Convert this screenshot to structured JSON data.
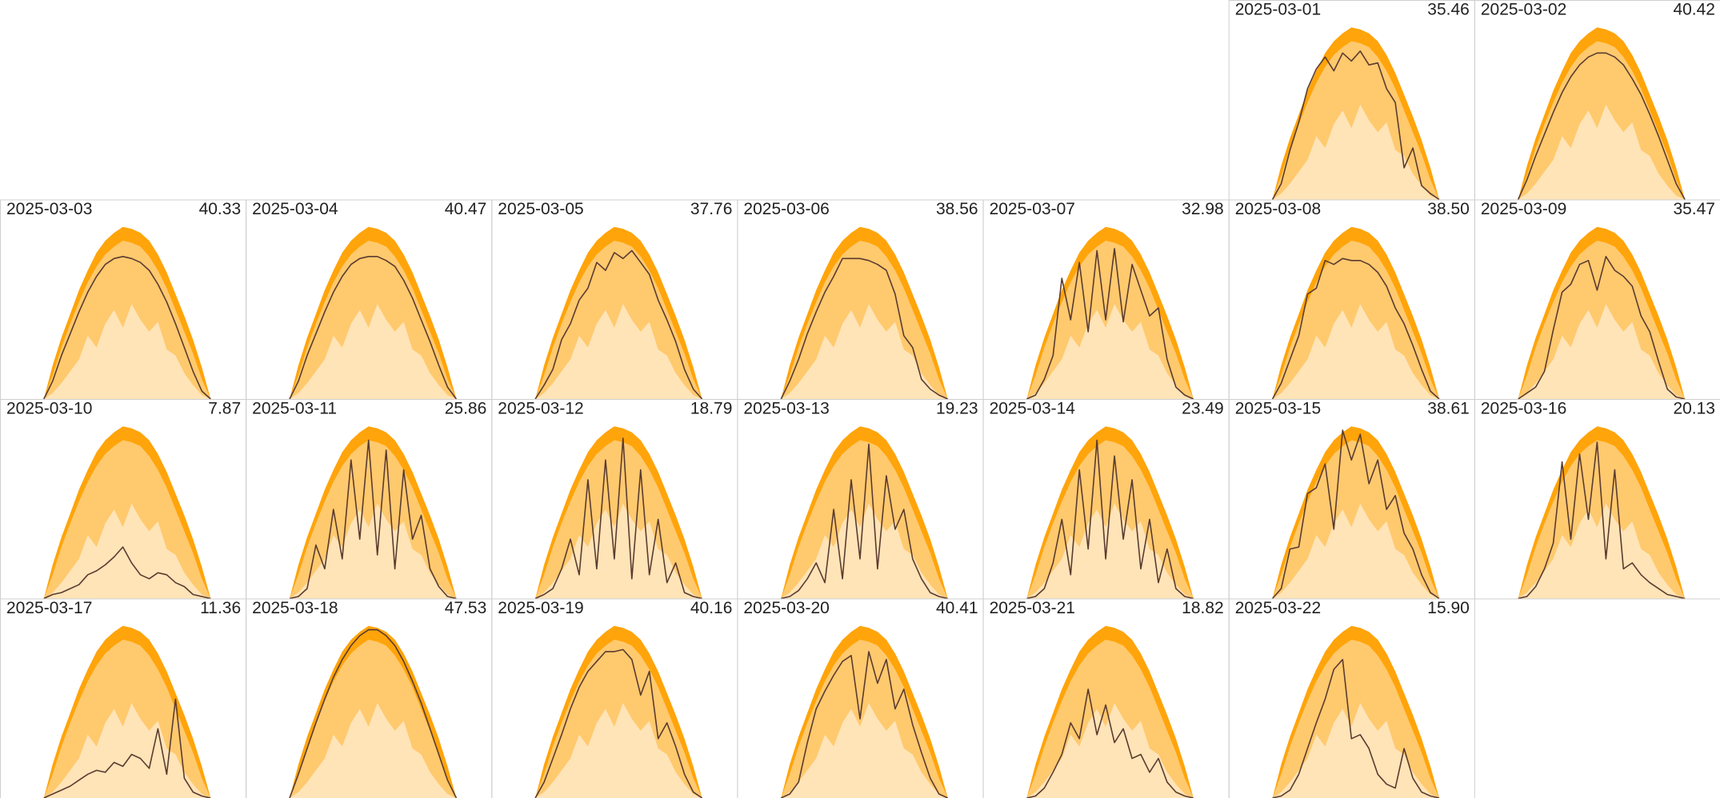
{
  "chart_data": {
    "type": "small-multiples",
    "x": [
      7.5,
      8,
      8.5,
      9,
      9.5,
      10,
      10.5,
      11,
      11.5,
      12,
      12.5,
      13,
      13.5,
      14,
      14.5,
      15,
      15.5,
      16,
      16.5,
      17
    ],
    "xlim": [
      5,
      19
    ],
    "ylim": [
      0,
      10
    ],
    "line_color": "#5b3b2f",
    "bands": [
      {
        "color": "#ffa40a",
        "values": [
          0,
          1.7,
          3.1,
          4.3,
          5.5,
          6.5,
          7.4,
          8.0,
          8.4,
          8.7,
          8.6,
          8.4,
          8.0,
          7.3,
          6.4,
          5.3,
          4.2,
          3.0,
          1.6,
          0
        ]
      },
      {
        "color": "#ffc96e",
        "values": [
          0,
          1.2,
          2.6,
          3.8,
          4.9,
          5.9,
          6.7,
          7.3,
          7.7,
          8.0,
          7.9,
          7.7,
          7.2,
          6.5,
          5.6,
          4.5,
          3.4,
          2.3,
          1.0,
          0
        ]
      },
      {
        "color": "#ffe4b8",
        "values": [
          0,
          0.3,
          0.8,
          1.4,
          2.0,
          3.2,
          2.6,
          3.8,
          4.5,
          3.6,
          4.8,
          4.0,
          3.4,
          3.9,
          2.5,
          2.2,
          1.3,
          0.7,
          0.2,
          0
        ]
      }
    ],
    "panels": [
      {
        "date": "2025-03-01",
        "total": {
          "value": 35.46,
          "label": "35.46"
        },
        "values": [
          0,
          0.8,
          2.5,
          3.9,
          5.6,
          6.6,
          7.2,
          6.5,
          7.4,
          7.0,
          7.5,
          6.8,
          6.9,
          5.6,
          4.9,
          1.6,
          2.6,
          0.7,
          0.3,
          0
        ]
      },
      {
        "date": "2025-03-02",
        "total": {
          "value": 40.42,
          "label": "40.42"
        },
        "values": [
          0,
          1.0,
          2.2,
          3.3,
          4.4,
          5.4,
          6.2,
          6.8,
          7.2,
          7.4,
          7.4,
          7.2,
          6.8,
          6.1,
          5.3,
          4.3,
          3.2,
          2.0,
          0.8,
          0
        ]
      },
      {
        "date": "2025-03-03",
        "total": {
          "value": 40.33,
          "label": "40.33"
        },
        "values": [
          0,
          0.9,
          2.2,
          3.3,
          4.4,
          5.4,
          6.2,
          6.8,
          7.1,
          7.2,
          7.1,
          6.9,
          6.5,
          5.8,
          4.9,
          3.8,
          2.6,
          1.4,
          0.4,
          0
        ]
      },
      {
        "date": "2025-03-04",
        "total": {
          "value": 40.47,
          "label": "40.47"
        },
        "values": [
          0,
          0.9,
          2.2,
          3.3,
          4.4,
          5.4,
          6.2,
          6.8,
          7.1,
          7.2,
          7.2,
          7.0,
          6.7,
          6.0,
          5.1,
          4.0,
          2.9,
          1.7,
          0.6,
          0
        ]
      },
      {
        "date": "2025-03-05",
        "total": {
          "value": 37.76,
          "label": "37.76"
        },
        "values": [
          0,
          0.7,
          1.5,
          3.0,
          3.8,
          5.0,
          5.6,
          6.9,
          6.5,
          7.4,
          7.1,
          7.5,
          6.9,
          6.3,
          5.0,
          4.0,
          2.9,
          1.5,
          0.5,
          0
        ]
      },
      {
        "date": "2025-03-06",
        "total": {
          "value": 38.56,
          "label": "38.56"
        },
        "values": [
          0,
          0.9,
          2.0,
          3.3,
          4.4,
          5.4,
          6.2,
          7.1,
          7.1,
          7.1,
          7.0,
          6.8,
          6.5,
          5.3,
          3.2,
          2.6,
          1.0,
          0.5,
          0.2,
          0
        ]
      },
      {
        "date": "2025-03-07",
        "total": {
          "value": 32.98,
          "label": "32.98"
        },
        "values": [
          0,
          0.2,
          1.0,
          2.2,
          6.1,
          4.0,
          6.9,
          3.4,
          7.5,
          4.0,
          7.6,
          3.9,
          6.8,
          5.5,
          4.2,
          4.6,
          2.0,
          0.6,
          0.2,
          0
        ]
      },
      {
        "date": "2025-03-08",
        "total": {
          "value": 38.5,
          "label": "38.50"
        },
        "values": [
          0,
          0.8,
          2.0,
          3.2,
          5.3,
          5.6,
          7.0,
          6.8,
          7.1,
          7.0,
          7.0,
          6.8,
          6.4,
          5.7,
          4.6,
          3.8,
          2.7,
          1.5,
          0.4,
          0
        ]
      },
      {
        "date": "2025-03-09",
        "total": {
          "value": 35.47,
          "label": "35.47"
        },
        "values": [
          0,
          0.3,
          0.6,
          1.4,
          3.5,
          5.4,
          5.8,
          6.8,
          7.0,
          5.5,
          7.2,
          6.5,
          6.2,
          5.7,
          4.2,
          3.4,
          1.9,
          0.5,
          0.1,
          0
        ]
      },
      {
        "date": "2025-03-10",
        "total": {
          "value": 7.87,
          "label": "7.87"
        },
        "values": [
          0,
          0.2,
          0.3,
          0.5,
          0.7,
          1.2,
          1.4,
          1.7,
          2.1,
          2.6,
          1.8,
          1.2,
          1.0,
          1.3,
          1.2,
          0.8,
          0.6,
          0.2,
          0.1,
          0
        ]
      },
      {
        "date": "2025-03-11",
        "total": {
          "value": 25.86,
          "label": "25.86"
        },
        "values": [
          0,
          0.1,
          0.5,
          2.7,
          1.5,
          4.5,
          2.0,
          7.0,
          3.0,
          8.0,
          2.2,
          7.5,
          1.5,
          6.5,
          3.0,
          4.2,
          1.5,
          0.6,
          0.1,
          0
        ]
      },
      {
        "date": "2025-03-12",
        "total": {
          "value": 18.79,
          "label": "18.79"
        },
        "values": [
          0,
          0.2,
          0.5,
          1.5,
          3.0,
          1.2,
          6.0,
          1.5,
          7.0,
          2.0,
          8.1,
          1.0,
          6.5,
          1.2,
          4.0,
          0.8,
          1.8,
          0.3,
          0.1,
          0
        ]
      },
      {
        "date": "2025-03-13",
        "total": {
          "value": 19.23,
          "label": "19.23"
        },
        "values": [
          0,
          0.1,
          0.4,
          1.0,
          1.8,
          0.8,
          4.5,
          1.0,
          6.0,
          2.0,
          7.8,
          1.5,
          6.2,
          3.5,
          4.5,
          2.0,
          1.0,
          0.3,
          0.1,
          0
        ]
      },
      {
        "date": "2025-03-14",
        "total": {
          "value": 23.49,
          "label": "23.49"
        },
        "values": [
          0,
          0.1,
          0.5,
          1.8,
          4.0,
          1.2,
          6.5,
          2.5,
          8.0,
          2.0,
          7.2,
          3.0,
          6.0,
          1.5,
          4.0,
          0.8,
          2.5,
          0.5,
          0.1,
          0
        ]
      },
      {
        "date": "2025-03-15",
        "total": {
          "value": 38.61,
          "label": "38.61"
        },
        "values": [
          0,
          0.5,
          2.5,
          2.6,
          5.3,
          5.6,
          6.8,
          3.5,
          8.5,
          7.0,
          8.3,
          5.8,
          7.0,
          4.5,
          5.2,
          3.3,
          2.5,
          1.2,
          0.3,
          0
        ]
      },
      {
        "date": "2025-03-16",
        "total": {
          "value": 20.13,
          "label": "20.13"
        },
        "values": [
          0,
          0.1,
          0.6,
          1.5,
          2.8,
          6.9,
          3.0,
          7.3,
          4.0,
          7.9,
          2.0,
          6.5,
          1.5,
          1.8,
          1.2,
          0.8,
          0.5,
          0.2,
          0.1,
          0
        ]
      },
      {
        "date": "2025-03-17",
        "total": {
          "value": 11.36,
          "label": "11.36"
        },
        "values": [
          0,
          0.2,
          0.4,
          0.6,
          0.9,
          1.2,
          1.4,
          1.3,
          1.8,
          1.6,
          2.2,
          2.0,
          1.5,
          3.5,
          1.2,
          5.0,
          1.0,
          0.3,
          0.1,
          0
        ]
      },
      {
        "date": "2025-03-18",
        "total": {
          "value": 47.53,
          "label": "47.53"
        },
        "values": [
          0,
          1.2,
          2.5,
          3.8,
          5.0,
          6.1,
          7.0,
          7.7,
          8.2,
          8.5,
          8.5,
          8.2,
          7.7,
          6.9,
          5.9,
          4.8,
          3.5,
          2.2,
          0.9,
          0
        ]
      },
      {
        "date": "2025-03-19",
        "total": {
          "value": 40.16,
          "label": "40.16"
        },
        "values": [
          0,
          0.8,
          2.0,
          3.2,
          4.5,
          5.6,
          6.4,
          6.9,
          7.4,
          7.4,
          7.5,
          7.0,
          5.2,
          6.4,
          3.0,
          3.8,
          2.6,
          1.2,
          0.3,
          0
        ]
      },
      {
        "date": "2025-03-20",
        "total": {
          "value": 40.41,
          "label": "40.41"
        },
        "values": [
          0,
          0.2,
          0.8,
          2.8,
          4.5,
          5.4,
          6.2,
          6.9,
          7.2,
          4.0,
          7.4,
          5.8,
          7.0,
          4.5,
          5.5,
          3.7,
          2.3,
          1.0,
          0.2,
          0
        ]
      },
      {
        "date": "2025-03-21",
        "total": {
          "value": 18.82,
          "label": "18.82"
        },
        "values": [
          0,
          0.1,
          0.5,
          1.3,
          2.2,
          3.8,
          3.0,
          5.5,
          3.2,
          4.7,
          2.8,
          3.5,
          2.0,
          2.2,
          1.3,
          2.0,
          0.8,
          0.3,
          0.1,
          0
        ]
      },
      {
        "date": "2025-03-22",
        "total": {
          "value": 15.9,
          "label": "15.90"
        },
        "values": [
          0,
          0.1,
          0.4,
          1.2,
          2.5,
          3.8,
          5.0,
          6.5,
          7.0,
          3.0,
          3.2,
          2.5,
          1.2,
          0.7,
          0.5,
          2.5,
          1.0,
          0.3,
          0.1,
          0
        ]
      }
    ]
  }
}
